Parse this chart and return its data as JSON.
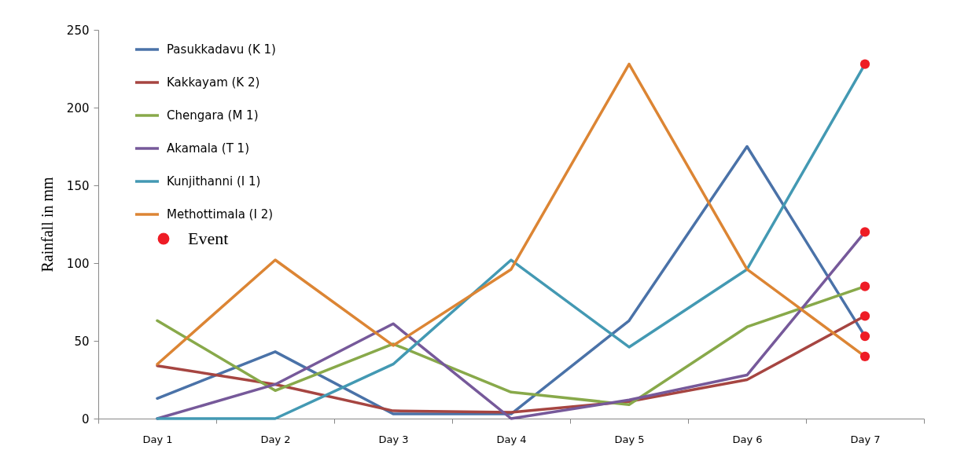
{
  "chart_data": {
    "type": "line",
    "ylabel": "Rainfall in mm",
    "categories": [
      "Day 1",
      "Day 2",
      "Day 3",
      "Day 4",
      "Day 5",
      "Day 6",
      "Day 7"
    ],
    "ylim": [
      0,
      250
    ],
    "yticks": [
      0,
      50,
      100,
      150,
      200,
      250
    ],
    "grid": false,
    "legend": "top left",
    "series": [
      {
        "name": "Pasukkadavu (K 1)",
        "color": "#4a72a8",
        "values": [
          13,
          43,
          3,
          3,
          63,
          175,
          53
        ]
      },
      {
        "name": "Kakkayam (K 2)",
        "color": "#a64541",
        "values": [
          34,
          22,
          5,
          4,
          11,
          25,
          66
        ]
      },
      {
        "name": "Chengara  (M 1)",
        "color": "#88a94a",
        "values": [
          63,
          18,
          48,
          17,
          9,
          59,
          85
        ]
      },
      {
        "name": "Akamala (T 1)",
        "color": "#76599a",
        "values": [
          0,
          22,
          61,
          0,
          12,
          28,
          120
        ]
      },
      {
        "name": "Kunjithanni (I 1)",
        "color": "#4399b3",
        "values": [
          0,
          0,
          35,
          102,
          46,
          96,
          228
        ]
      },
      {
        "name": "Methottimala (I 2)",
        "color": "#dc8534",
        "values": [
          35,
          102,
          47,
          96,
          228,
          96,
          40
        ]
      },
      {
        "name": "Event",
        "type": "scatter",
        "marker": "circle",
        "color": "#ee1c25",
        "x": [
          "Day 7",
          "Day 7",
          "Day 7",
          "Day 7",
          "Day 7",
          "Day 7"
        ],
        "values": [
          228,
          120,
          85,
          66,
          53,
          40
        ]
      }
    ]
  }
}
